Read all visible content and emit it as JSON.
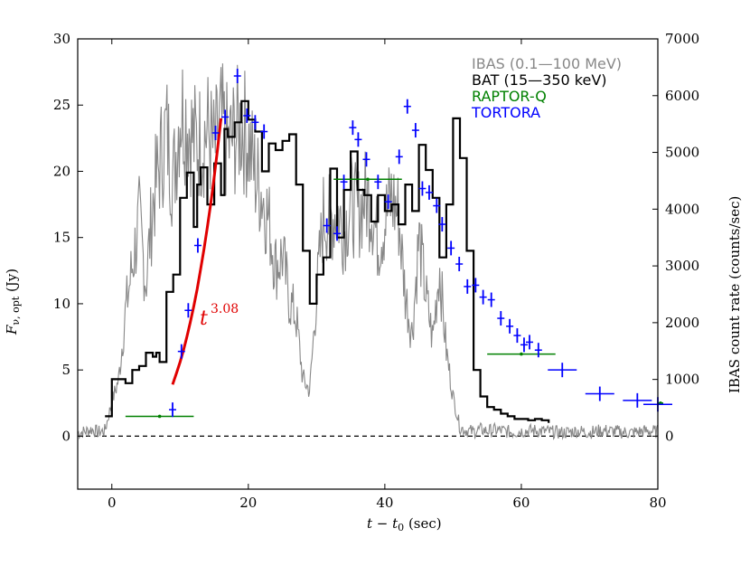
{
  "chart_data": {
    "type": "line",
    "title": "",
    "xlabel": "t − t0 (sec)",
    "ylabel_left": "Fν, opt (Jy)",
    "ylabel_right": "IBAS count rate (counts/sec)",
    "xlim": [
      -5,
      80
    ],
    "ylim_left": [
      -4,
      30
    ],
    "ylim_right": [
      -933,
      7000
    ],
    "x_ticks": [
      0,
      20,
      40,
      60,
      80
    ],
    "y_left_ticks": [
      0,
      5,
      10,
      15,
      20,
      25,
      30
    ],
    "y_right_ticks": [
      0,
      1000,
      2000,
      3000,
      4000,
      5000,
      6000,
      7000
    ],
    "x_tick_labels": [
      "0",
      "20",
      "40",
      "60",
      "80"
    ],
    "y_left_tick_labels": [
      "0",
      "5",
      "10",
      "15",
      "20",
      "25",
      "30"
    ],
    "y_right_tick_labels": [
      "0",
      "1000",
      "2000",
      "3000",
      "4000",
      "5000",
      "6000",
      "7000"
    ],
    "annotation": {
      "base": "t",
      "exponent": "3.08",
      "color": "#e00000"
    },
    "legend": [
      {
        "label": "IBAS",
        "extra": "(0.1—100 MeV)",
        "color": "#888888"
      },
      {
        "label": "BAT",
        "extra": "(15—350 keV)",
        "color": "#000000"
      },
      {
        "label": "RAPTOR-Q",
        "extra": "",
        "color": "#008000"
      },
      {
        "label": "TORTORA",
        "extra": "",
        "color": "#0000ff"
      }
    ],
    "series": [
      {
        "name": "BAT (15—350 keV)",
        "axis": "left",
        "style": "step",
        "x": [
          -1,
          0,
          2,
          3,
          4,
          5,
          6,
          6.5,
          7,
          8,
          9,
          10,
          11,
          12,
          12.5,
          13,
          14,
          15,
          16,
          16.5,
          17,
          18,
          19,
          20,
          21,
          22,
          23,
          24,
          25,
          26,
          27,
          28,
          29,
          30,
          31,
          32,
          33,
          34,
          35,
          36,
          37,
          38,
          39,
          40,
          41,
          42,
          43,
          44,
          45,
          46,
          47,
          48,
          49,
          50,
          51,
          52,
          53,
          54,
          55,
          56,
          57,
          58,
          59,
          60,
          61,
          62,
          63,
          64
        ],
        "y": [
          1.5,
          4.3,
          4.0,
          5.0,
          5.3,
          6.3,
          6.0,
          6.3,
          5.6,
          10.9,
          12.2,
          18.0,
          19.9,
          15.8,
          19.0,
          20.3,
          17.5,
          20.6,
          18.2,
          23.2,
          22.6,
          23.7,
          25.3,
          23.9,
          23.0,
          20.0,
          22.1,
          21.6,
          22.3,
          22.8,
          19.0,
          14.0,
          10.0,
          12.2,
          13.5,
          20.2,
          15.0,
          18.6,
          21.5,
          18.6,
          18.2,
          16.2,
          18.2,
          17.0,
          17.5,
          16.0,
          19.0,
          17.0,
          22.0,
          20.1,
          18.0,
          13.5,
          17.5,
          24.0,
          21.0,
          14.0,
          5.0,
          3.0,
          2.2,
          2.0,
          1.7,
          1.5,
          1.3,
          1.3,
          1.2,
          1.3,
          1.2,
          1.0
        ]
      },
      {
        "name": "IBAS (0.1—100 MeV)",
        "axis": "right",
        "style": "noise",
        "x": [
          -5,
          -4,
          -3,
          -2,
          -1,
          0,
          1,
          2,
          3,
          4,
          5,
          6,
          7,
          8,
          9,
          10,
          11,
          12,
          13,
          14,
          15,
          16,
          17,
          18,
          19,
          20,
          21,
          22,
          23,
          24,
          25,
          26,
          27,
          28,
          29,
          30,
          31,
          32,
          33,
          34,
          35,
          36,
          37,
          38,
          39,
          40,
          41,
          42,
          43,
          44,
          45,
          46,
          47,
          48,
          49,
          50,
          51,
          52,
          53,
          54,
          55,
          56,
          57,
          58,
          59,
          60,
          62,
          64,
          66,
          68,
          70,
          72,
          74,
          76,
          78,
          80
        ],
        "y": [
          60,
          80,
          120,
          70,
          100,
          600,
          1000,
          2200,
          3000,
          3800,
          2700,
          4100,
          4800,
          5400,
          4500,
          5800,
          5600,
          5200,
          5200,
          5400,
          5000,
          5500,
          5100,
          5300,
          5500,
          5200,
          4600,
          4300,
          3800,
          3000,
          3200,
          2400,
          2100,
          1000,
          800,
          2500,
          3900,
          3800,
          4000,
          3600,
          4100,
          3900,
          4200,
          4100,
          3400,
          3800,
          4200,
          3900,
          2500,
          1800,
          3500,
          2500,
          1700,
          3000,
          1500,
          700,
          150,
          100,
          80,
          120,
          90,
          110,
          100,
          80,
          70,
          90,
          100,
          80,
          60,
          90,
          70,
          100,
          80,
          60,
          90,
          80
        ]
      },
      {
        "name": "TORTORA",
        "axis": "left",
        "style": "errorbar",
        "x": [
          8.9,
          10.2,
          11.2,
          12.6,
          15.2,
          16.6,
          18.4,
          19.8,
          21.0,
          22.3,
          31.5,
          33.0,
          34.0,
          35.3,
          36.1,
          37.3,
          39.0,
          40.5,
          42.1,
          43.3,
          44.5,
          45.5,
          46.5,
          47.6,
          48.4,
          49.7,
          50.9,
          52.1,
          53.3,
          54.4,
          55.6,
          57.0,
          58.3,
          59.4,
          60.4,
          61.2,
          62.5,
          66.0,
          71.5,
          77.0,
          80.0
        ],
        "y": [
          2.0,
          6.4,
          9.5,
          14.4,
          22.9,
          24.1,
          27.2,
          24.2,
          23.7,
          23.0,
          15.9,
          15.3,
          19.2,
          23.3,
          22.4,
          20.9,
          19.2,
          17.7,
          21.1,
          24.9,
          23.1,
          18.7,
          18.4,
          17.4,
          16.0,
          14.2,
          13.0,
          11.3,
          11.4,
          10.5,
          10.3,
          8.9,
          8.3,
          7.6,
          6.9,
          7.1,
          6.5,
          5.0,
          3.2,
          2.7,
          2.4
        ]
      },
      {
        "name": "RAPTOR-Q",
        "axis": "left",
        "style": "hbar",
        "x_start": [
          2.0,
          32.5,
          55.0,
          80.0
        ],
        "x_end": [
          12.0,
          42.5,
          65.0,
          80.0
        ],
        "y": [
          1.5,
          19.4,
          6.2,
          2.5
        ]
      },
      {
        "name": "t^3.08 fit",
        "axis": "left",
        "style": "curve",
        "x": [
          8.9,
          9.5,
          10.0,
          10.5,
          11.0,
          11.5,
          12.0,
          12.5,
          13.0,
          13.5,
          14.0,
          14.5,
          15.0,
          15.5,
          16.0
        ],
        "y": [
          3.9,
          4.8,
          5.6,
          6.5,
          7.5,
          8.6,
          9.8,
          11.1,
          12.6,
          14.1,
          15.8,
          17.6,
          19.6,
          21.7,
          24.0
        ]
      }
    ]
  }
}
